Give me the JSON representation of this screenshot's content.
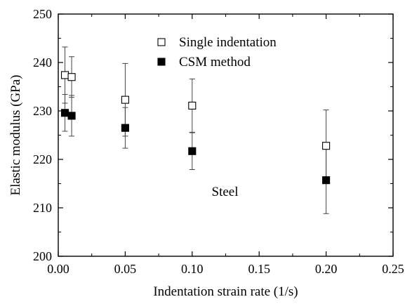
{
  "chart_data": {
    "type": "scatter",
    "title": "",
    "xlabel": "Indentation strain rate (1/s)",
    "ylabel": "Elastic modulus (GPa)",
    "xlim": [
      0.0,
      0.25
    ],
    "ylim": [
      200,
      250
    ],
    "xticks": [
      0.0,
      0.05,
      0.1,
      0.15,
      0.2,
      0.25
    ],
    "xtick_labels": [
      "0.00",
      "0.05",
      "0.10",
      "0.15",
      "0.20",
      "0.25"
    ],
    "yticks": [
      200,
      210,
      220,
      230,
      240,
      250
    ],
    "ytick_labels": [
      "200",
      "210",
      "220",
      "230",
      "240",
      "250"
    ],
    "grid": false,
    "legend_position": "top-center",
    "series": [
      {
        "name": "Single indentation",
        "marker": "open-square",
        "color": "#000000",
        "points": [
          {
            "x": 0.005,
            "y": 237.4,
            "err_low": 231.6,
            "err_high": 243.2
          },
          {
            "x": 0.01,
            "y": 237.0,
            "err_low": 232.8,
            "err_high": 241.2
          },
          {
            "x": 0.05,
            "y": 232.3,
            "err_low": 224.8,
            "err_high": 239.8
          },
          {
            "x": 0.1,
            "y": 231.1,
            "err_low": 225.6,
            "err_high": 236.6
          },
          {
            "x": 0.2,
            "y": 222.8,
            "err_low": 215.4,
            "err_high": 230.2
          }
        ]
      },
      {
        "name": "CSM method",
        "marker": "filled-square",
        "color": "#000000",
        "points": [
          {
            "x": 0.005,
            "y": 229.6,
            "err_low": 225.8,
            "err_high": 233.4
          },
          {
            "x": 0.01,
            "y": 229.0,
            "err_low": 224.8,
            "err_high": 233.2
          },
          {
            "x": 0.05,
            "y": 226.5,
            "err_low": 222.3,
            "err_high": 230.7
          },
          {
            "x": 0.1,
            "y": 221.7,
            "err_low": 217.9,
            "err_high": 225.5
          },
          {
            "x": 0.2,
            "y": 215.7,
            "err_low": 208.8,
            "err_high": 222.6
          }
        ]
      }
    ],
    "annotations": [
      {
        "text": "Steel",
        "x": 0.125,
        "y": 212
      }
    ]
  }
}
